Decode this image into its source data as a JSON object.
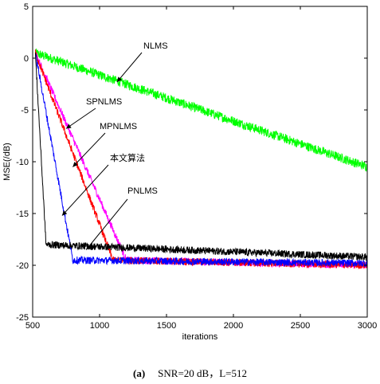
{
  "chart_data": {
    "type": "line",
    "xlabel": "iterations",
    "ylabel": "MSE(/dB)",
    "xlim": [
      500,
      3000
    ],
    "ylim": [
      -25,
      5
    ],
    "xticks": [
      500,
      1000,
      1500,
      2000,
      2500,
      3000
    ],
    "yticks": [
      -25,
      -20,
      -15,
      -10,
      -5,
      0,
      5
    ],
    "grid": false,
    "series": [
      {
        "name": "NLMS",
        "color": "#00ff00",
        "x": [
          520,
          3000
        ],
        "y": [
          0.5,
          -10.5
        ],
        "floor": -10.5,
        "noise": 0.45
      },
      {
        "name": "SPNLMS",
        "color": "#ff00ff",
        "x": [
          520,
          1200,
          3000
        ],
        "y": [
          0.5,
          -19.5,
          -20.0
        ],
        "floor": -20.0,
        "noise": 0.35
      },
      {
        "name": "MPNLMS",
        "color": "#ff0000",
        "x": [
          520,
          1100,
          3000
        ],
        "y": [
          0.5,
          -19.5,
          -20.0
        ],
        "floor": -20.0,
        "noise": 0.35
      },
      {
        "name": "本文算法",
        "color": "#0000ff",
        "x": [
          520,
          800,
          3000
        ],
        "y": [
          0.5,
          -19.5,
          -19.8
        ],
        "floor": -19.8,
        "noise": 0.35
      },
      {
        "name": "PNLMS",
        "color": "#000000",
        "x": [
          520,
          600,
          3000
        ],
        "y": [
          0.5,
          -18.0,
          -19.2
        ],
        "floor": -19.2,
        "noise": 0.35
      }
    ],
    "annotations": [
      {
        "text": "NLMS",
        "point": [
          1130,
          -2.3
        ]
      },
      {
        "text": "SPNLMS",
        "point": [
          750,
          -6.8
        ]
      },
      {
        "text": "MPNLMS",
        "point": [
          800,
          -10.5
        ]
      },
      {
        "text": "本文算法",
        "point": [
          720,
          -15.2
        ]
      },
      {
        "text": "PNLMS",
        "point": [
          900,
          -18.5
        ]
      }
    ]
  },
  "caption": {
    "label": "(a)",
    "text": "SNR=20 dB，L=512"
  }
}
